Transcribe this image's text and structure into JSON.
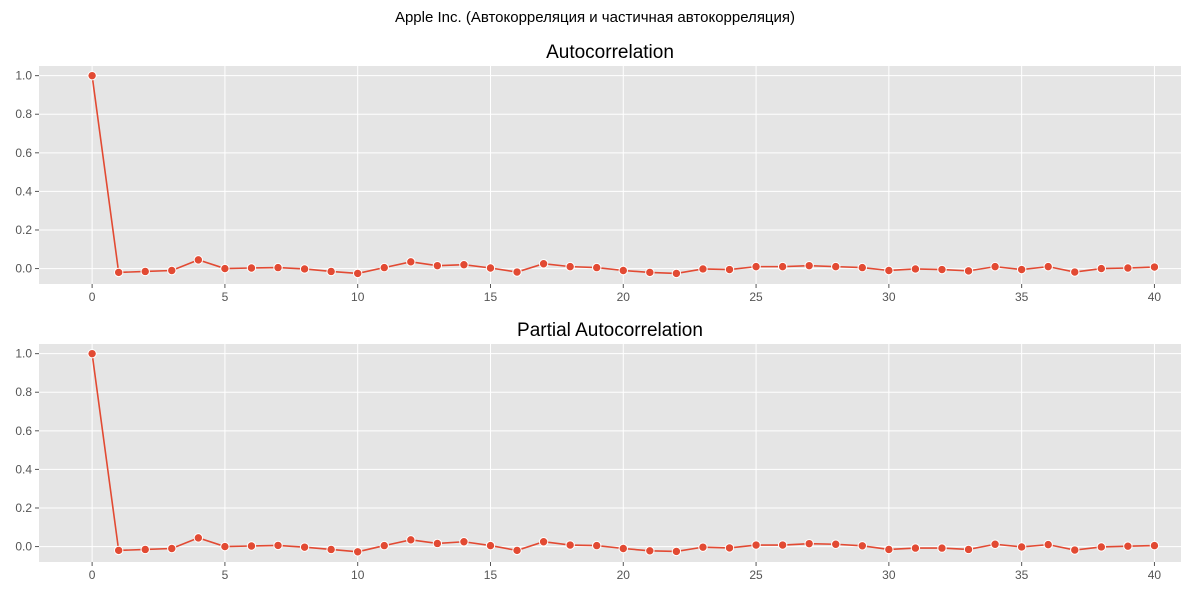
{
  "figure": {
    "suptitle": "Apple Inc. (Автокорреляция и частичная автокорреляция)"
  },
  "colors": {
    "line": "#e24a33",
    "background": "#e5e5e5",
    "grid": "#ffffff",
    "tick_label": "#555555"
  },
  "chart_data": [
    {
      "type": "line",
      "title": "Autocorrelation",
      "xlabel": "",
      "ylabel": "",
      "marker": "circle",
      "grid": true,
      "xlim": [
        -2,
        41
      ],
      "ylim": [
        -0.08,
        1.05
      ],
      "xticks": [
        0,
        5,
        10,
        15,
        20,
        25,
        30,
        35,
        40
      ],
      "xtick_labels": [
        "0",
        "5",
        "10",
        "15",
        "20",
        "25",
        "30",
        "35",
        "40"
      ],
      "yticks": [
        0.0,
        0.2,
        0.4,
        0.6,
        0.8,
        1.0
      ],
      "ytick_labels": [
        "0.0",
        "0.2",
        "0.4",
        "0.6",
        "0.8",
        "1.0"
      ],
      "series": [
        {
          "x": [
            0,
            1,
            2,
            3,
            4,
            5,
            6,
            7,
            8,
            9,
            10,
            11,
            12,
            13,
            14,
            15,
            16,
            17,
            18,
            19,
            20,
            21,
            22,
            23,
            24,
            25,
            26,
            27,
            28,
            29,
            30,
            31,
            32,
            33,
            34,
            35,
            36,
            37,
            38,
            39,
            40
          ],
          "values": [
            1.0,
            -0.02,
            -0.015,
            -0.01,
            0.045,
            0.0,
            0.003,
            0.005,
            -0.002,
            -0.015,
            -0.025,
            0.005,
            0.035,
            0.015,
            0.02,
            0.003,
            -0.018,
            0.025,
            0.01,
            0.005,
            -0.01,
            -0.02,
            -0.025,
            -0.002,
            -0.005,
            0.01,
            0.01,
            0.015,
            0.01,
            0.005,
            -0.01,
            -0.002,
            -0.005,
            -0.012,
            0.01,
            -0.005,
            0.01,
            -0.018,
            0.0,
            0.003,
            0.008
          ]
        }
      ]
    },
    {
      "type": "line",
      "title": "Partial Autocorrelation",
      "xlabel": "",
      "ylabel": "",
      "marker": "circle",
      "grid": true,
      "xlim": [
        -2,
        41
      ],
      "ylim": [
        -0.08,
        1.05
      ],
      "xticks": [
        0,
        5,
        10,
        15,
        20,
        25,
        30,
        35,
        40
      ],
      "xtick_labels": [
        "0",
        "5",
        "10",
        "15",
        "20",
        "25",
        "30",
        "35",
        "40"
      ],
      "yticks": [
        0.0,
        0.2,
        0.4,
        0.6,
        0.8,
        1.0
      ],
      "ytick_labels": [
        "0.0",
        "0.2",
        "0.4",
        "0.6",
        "0.8",
        "1.0"
      ],
      "series": [
        {
          "x": [
            0,
            1,
            2,
            3,
            4,
            5,
            6,
            7,
            8,
            9,
            10,
            11,
            12,
            13,
            14,
            15,
            16,
            17,
            18,
            19,
            20,
            21,
            22,
            23,
            24,
            25,
            26,
            27,
            28,
            29,
            30,
            31,
            32,
            33,
            34,
            35,
            36,
            37,
            38,
            39,
            40
          ],
          "values": [
            1.0,
            -0.02,
            -0.015,
            -0.01,
            0.045,
            0.0,
            0.003,
            0.006,
            -0.003,
            -0.015,
            -0.027,
            0.005,
            0.035,
            0.016,
            0.025,
            0.005,
            -0.02,
            0.025,
            0.008,
            0.005,
            -0.01,
            -0.022,
            -0.025,
            -0.003,
            -0.007,
            0.008,
            0.008,
            0.015,
            0.012,
            0.004,
            -0.015,
            -0.008,
            -0.008,
            -0.015,
            0.012,
            -0.002,
            0.01,
            -0.018,
            -0.002,
            0.002,
            0.005
          ]
        }
      ]
    }
  ]
}
